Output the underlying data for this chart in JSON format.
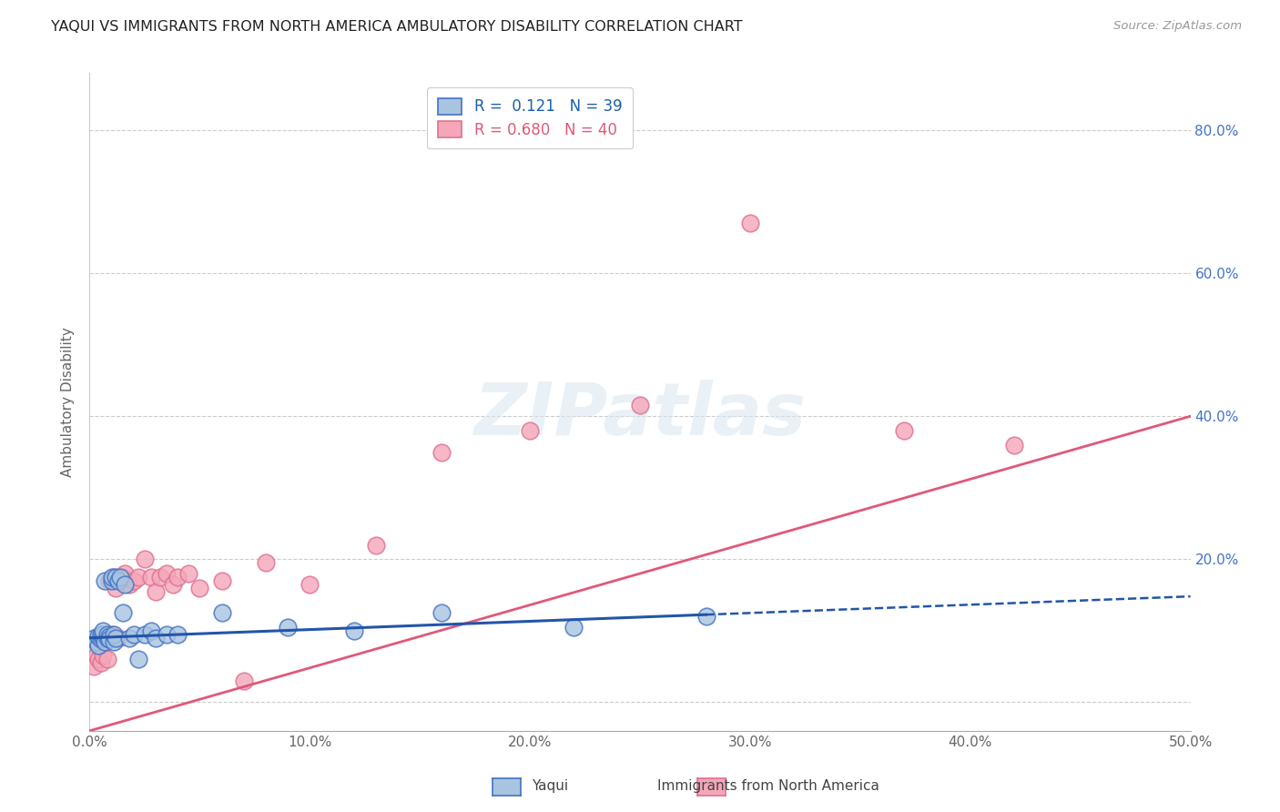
{
  "title": "YAQUI VS IMMIGRANTS FROM NORTH AMERICA AMBULATORY DISABILITY CORRELATION CHART",
  "source": "Source: ZipAtlas.com",
  "ylabel": "Ambulatory Disability",
  "xlim": [
    0.0,
    0.5
  ],
  "ylim": [
    -0.04,
    0.88
  ],
  "xticks": [
    0.0,
    0.1,
    0.2,
    0.3,
    0.4,
    0.5
  ],
  "xticklabels": [
    "0.0%",
    "10.0%",
    "20.0%",
    "30.0%",
    "40.0%",
    "50.0%"
  ],
  "yticks": [
    0.0,
    0.2,
    0.4,
    0.6,
    0.8
  ],
  "right_yticks": [
    0.2,
    0.4,
    0.6,
    0.8
  ],
  "right_yticklabels": [
    "20.0%",
    "40.0%",
    "60.0%",
    "80.0%"
  ],
  "legend_r1": "R =  0.121   N = 39",
  "legend_r2": "R = 0.680   N = 40",
  "color_yaqui_fill": "#a8c4e0",
  "color_yaqui_edge": "#4472c4",
  "color_immigrants_fill": "#f4a7b9",
  "color_immigrants_edge": "#e07090",
  "color_line_yaqui": "#2255aa",
  "color_line_immigrants": "#e05878",
  "background_color": "#ffffff",
  "watermark": "ZIPatlas",
  "yaqui_x": [
    0.002,
    0.003,
    0.004,
    0.004,
    0.005,
    0.005,
    0.006,
    0.006,
    0.006,
    0.007,
    0.007,
    0.008,
    0.008,
    0.009,
    0.009,
    0.01,
    0.01,
    0.011,
    0.011,
    0.012,
    0.012,
    0.013,
    0.014,
    0.015,
    0.016,
    0.018,
    0.02,
    0.022,
    0.025,
    0.028,
    0.03,
    0.035,
    0.04,
    0.06,
    0.09,
    0.12,
    0.16,
    0.22,
    0.28
  ],
  "yaqui_y": [
    0.09,
    0.085,
    0.08,
    0.092,
    0.088,
    0.095,
    0.09,
    0.095,
    0.1,
    0.085,
    0.17,
    0.09,
    0.095,
    0.092,
    0.088,
    0.17,
    0.175,
    0.085,
    0.095,
    0.09,
    0.175,
    0.17,
    0.175,
    0.125,
    0.165,
    0.09,
    0.095,
    0.06,
    0.095,
    0.1,
    0.09,
    0.095,
    0.095,
    0.125,
    0.105,
    0.1,
    0.125,
    0.105,
    0.12
  ],
  "immigrants_x": [
    0.002,
    0.003,
    0.004,
    0.005,
    0.005,
    0.006,
    0.006,
    0.007,
    0.008,
    0.008,
    0.009,
    0.01,
    0.011,
    0.012,
    0.013,
    0.015,
    0.016,
    0.018,
    0.02,
    0.022,
    0.025,
    0.028,
    0.03,
    0.032,
    0.035,
    0.038,
    0.04,
    0.045,
    0.05,
    0.06,
    0.07,
    0.08,
    0.1,
    0.13,
    0.16,
    0.2,
    0.25,
    0.3,
    0.37,
    0.42
  ],
  "immigrants_y": [
    0.05,
    0.065,
    0.06,
    0.055,
    0.08,
    0.065,
    0.09,
    0.085,
    0.06,
    0.09,
    0.17,
    0.095,
    0.175,
    0.16,
    0.09,
    0.175,
    0.18,
    0.165,
    0.17,
    0.175,
    0.2,
    0.175,
    0.155,
    0.175,
    0.18,
    0.165,
    0.175,
    0.18,
    0.16,
    0.17,
    0.03,
    0.195,
    0.165,
    0.22,
    0.35,
    0.38,
    0.415,
    0.67,
    0.38,
    0.36
  ],
  "yaqui_line_x_solid_end": 0.28,
  "pink_line_y_at_0": -0.04,
  "pink_line_y_at_50": 0.4,
  "blue_line_y_at_0": 0.09,
  "blue_line_y_at_50": 0.148
}
